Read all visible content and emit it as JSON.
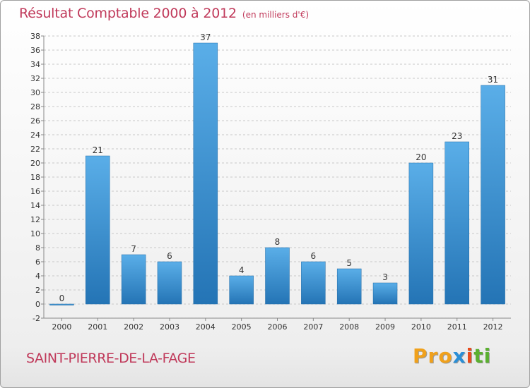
{
  "header": {
    "title": "Résultat Comptable 2000 à 2012",
    "subtitle": "(en milliers d'€)"
  },
  "footer": {
    "town": "SAINT-PIERRE-DE-LA-FAGE",
    "logo_parts": [
      "Pro",
      "x",
      "i",
      "ti"
    ]
  },
  "colors": {
    "title": "#c0395a",
    "bar_top": "#5aaee8",
    "bar_bottom": "#2474b5",
    "grid": "#c8c8c8"
  },
  "chart_data": {
    "type": "bar",
    "title": "Résultat Comptable 2000 à 2012",
    "subtitle": "(en milliers d'€)",
    "categories": [
      "2000",
      "2001",
      "2002",
      "2003",
      "2004",
      "2005",
      "2006",
      "2007",
      "2008",
      "2009",
      "2010",
      "2011",
      "2012"
    ],
    "values": [
      0,
      21,
      7,
      6,
      37,
      4,
      8,
      6,
      5,
      3,
      20,
      23,
      31
    ],
    "ylim": [
      -2,
      38
    ],
    "yticks": [
      -2,
      0,
      2,
      4,
      6,
      8,
      10,
      12,
      14,
      16,
      18,
      20,
      22,
      24,
      26,
      28,
      30,
      32,
      34,
      36,
      38
    ],
    "grid": "horizontal dashed",
    "xlabel": "",
    "ylabel": ""
  }
}
